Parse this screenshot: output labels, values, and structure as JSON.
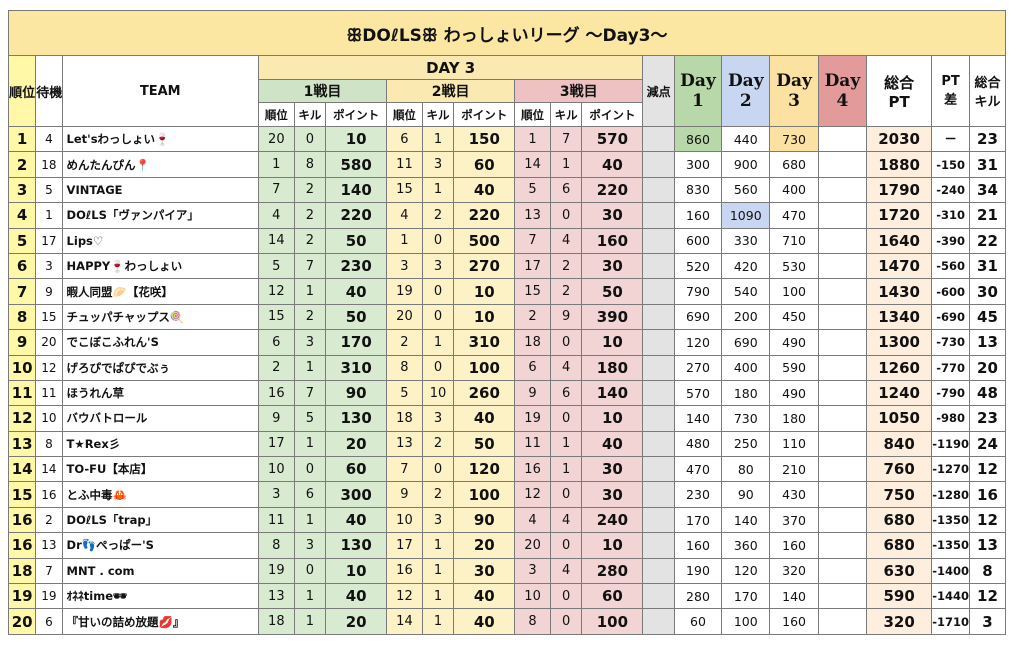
{
  "title": "ꕥDOℓLSꕥ わっしょいリーグ 〜Day3〜",
  "headers": {
    "rank": "順位",
    "wait": "待機",
    "team": "TEAM",
    "day3": "DAY 3",
    "match1": "1戦目",
    "match2": "2戦目",
    "match3": "3戦目",
    "penalty": "減点",
    "sub_rank": "順位",
    "sub_kill": "キル",
    "sub_point": "ポイント",
    "day_label": "Day",
    "day1": "1",
    "day2": "2",
    "day3n": "3",
    "day4": "4",
    "total_a": "総合",
    "total_b": "PT",
    "diff_a": "PT",
    "diff_b": "差",
    "kills_a": "総合",
    "kills_b": "キル"
  },
  "rows": [
    {
      "rank": "1",
      "wait": "4",
      "team": "Let'sわっしょい🍷",
      "m1": [
        "20",
        "0",
        "10"
      ],
      "m2": [
        "6",
        "1",
        "150"
      ],
      "m3": [
        "1",
        "7",
        "570"
      ],
      "pen": "",
      "d1": "860",
      "d2": "440",
      "d3": "730",
      "d4": "",
      "total": "2030",
      "diff": "ー",
      "kills": "23"
    },
    {
      "rank": "2",
      "wait": "18",
      "team": "めんたんぴん📍",
      "m1": [
        "1",
        "8",
        "580"
      ],
      "m2": [
        "11",
        "3",
        "60"
      ],
      "m3": [
        "14",
        "1",
        "40"
      ],
      "pen": "",
      "d1": "300",
      "d2": "900",
      "d3": "680",
      "d4": "",
      "total": "1880",
      "diff": "-150",
      "kills": "31"
    },
    {
      "rank": "3",
      "wait": "5",
      "team": "VINTAGE",
      "m1": [
        "7",
        "2",
        "140"
      ],
      "m2": [
        "15",
        "1",
        "40"
      ],
      "m3": [
        "5",
        "6",
        "220"
      ],
      "pen": "",
      "d1": "830",
      "d2": "560",
      "d3": "400",
      "d4": "",
      "total": "1790",
      "diff": "-240",
      "kills": "34"
    },
    {
      "rank": "4",
      "wait": "1",
      "team": "DOℓLS「ヴァンパイア」",
      "m1": [
        "4",
        "2",
        "220"
      ],
      "m2": [
        "4",
        "2",
        "220"
      ],
      "m3": [
        "13",
        "0",
        "30"
      ],
      "pen": "",
      "d1": "160",
      "d2": "1090",
      "d3": "470",
      "d4": "",
      "total": "1720",
      "diff": "-310",
      "kills": "21"
    },
    {
      "rank": "5",
      "wait": "17",
      "team": "Lips♡",
      "m1": [
        "14",
        "2",
        "50"
      ],
      "m2": [
        "1",
        "0",
        "500"
      ],
      "m3": [
        "7",
        "4",
        "160"
      ],
      "pen": "",
      "d1": "600",
      "d2": "330",
      "d3": "710",
      "d4": "",
      "total": "1640",
      "diff": "-390",
      "kills": "22"
    },
    {
      "rank": "6",
      "wait": "3",
      "team": "HAPPY🍷わっしょい",
      "m1": [
        "5",
        "7",
        "230"
      ],
      "m2": [
        "3",
        "3",
        "270"
      ],
      "m3": [
        "17",
        "2",
        "30"
      ],
      "pen": "",
      "d1": "520",
      "d2": "420",
      "d3": "530",
      "d4": "",
      "total": "1470",
      "diff": "-560",
      "kills": "31"
    },
    {
      "rank": "7",
      "wait": "9",
      "team": "暇人同盟🥟【花咲】",
      "m1": [
        "12",
        "1",
        "40"
      ],
      "m2": [
        "19",
        "0",
        "10"
      ],
      "m3": [
        "15",
        "2",
        "50"
      ],
      "pen": "",
      "d1": "790",
      "d2": "540",
      "d3": "100",
      "d4": "",
      "total": "1430",
      "diff": "-600",
      "kills": "30"
    },
    {
      "rank": "8",
      "wait": "15",
      "team": "チュッパチャップス🍭",
      "m1": [
        "15",
        "2",
        "50"
      ],
      "m2": [
        "20",
        "0",
        "10"
      ],
      "m3": [
        "2",
        "9",
        "390"
      ],
      "pen": "",
      "d1": "690",
      "d2": "200",
      "d3": "450",
      "d4": "",
      "total": "1340",
      "diff": "-690",
      "kills": "45"
    },
    {
      "rank": "9",
      "wait": "20",
      "team": "でこぼこふれん'S",
      "m1": [
        "6",
        "3",
        "170"
      ],
      "m2": [
        "2",
        "1",
        "310"
      ],
      "m3": [
        "18",
        "0",
        "10"
      ],
      "pen": "",
      "d1": "120",
      "d2": "690",
      "d3": "490",
      "d4": "",
      "total": "1300",
      "diff": "-730",
      "kills": "13"
    },
    {
      "rank": "10",
      "wait": "12",
      "team": "げろぴでぱぴでぶぅ",
      "m1": [
        "2",
        "1",
        "310"
      ],
      "m2": [
        "8",
        "0",
        "100"
      ],
      "m3": [
        "6",
        "4",
        "180"
      ],
      "pen": "",
      "d1": "270",
      "d2": "400",
      "d3": "590",
      "d4": "",
      "total": "1260",
      "diff": "-770",
      "kills": "20"
    },
    {
      "rank": "11",
      "wait": "11",
      "team": "ほうれん草",
      "m1": [
        "16",
        "7",
        "90"
      ],
      "m2": [
        "5",
        "10",
        "260"
      ],
      "m3": [
        "9",
        "6",
        "140"
      ],
      "pen": "",
      "d1": "570",
      "d2": "180",
      "d3": "490",
      "d4": "",
      "total": "1240",
      "diff": "-790",
      "kills": "48"
    },
    {
      "rank": "12",
      "wait": "10",
      "team": "バウバトロール",
      "m1": [
        "9",
        "5",
        "130"
      ],
      "m2": [
        "18",
        "3",
        "40"
      ],
      "m3": [
        "19",
        "0",
        "10"
      ],
      "pen": "",
      "d1": "140",
      "d2": "730",
      "d3": "180",
      "d4": "",
      "total": "1050",
      "diff": "-980",
      "kills": "23"
    },
    {
      "rank": "13",
      "wait": "8",
      "team": "T★Rex彡",
      "m1": [
        "17",
        "1",
        "20"
      ],
      "m2": [
        "13",
        "2",
        "50"
      ],
      "m3": [
        "11",
        "1",
        "40"
      ],
      "pen": "",
      "d1": "480",
      "d2": "250",
      "d3": "110",
      "d4": "",
      "total": "840",
      "diff": "-1190",
      "kills": "24"
    },
    {
      "rank": "14",
      "wait": "14",
      "team": "TO-FU【本店】",
      "m1": [
        "10",
        "0",
        "60"
      ],
      "m2": [
        "7",
        "0",
        "120"
      ],
      "m3": [
        "16",
        "1",
        "30"
      ],
      "pen": "",
      "d1": "470",
      "d2": "80",
      "d3": "210",
      "d4": "",
      "total": "760",
      "diff": "-1270",
      "kills": "12"
    },
    {
      "rank": "15",
      "wait": "16",
      "team": "とふ中毒🦀",
      "m1": [
        "3",
        "6",
        "300"
      ],
      "m2": [
        "9",
        "2",
        "100"
      ],
      "m3": [
        "12",
        "0",
        "30"
      ],
      "pen": "",
      "d1": "230",
      "d2": "90",
      "d3": "430",
      "d4": "",
      "total": "750",
      "diff": "-1280",
      "kills": "16"
    },
    {
      "rank": "16",
      "wait": "2",
      "team": "DOℓLS「trap」",
      "m1": [
        "11",
        "1",
        "40"
      ],
      "m2": [
        "10",
        "3",
        "90"
      ],
      "m3": [
        "4",
        "4",
        "240"
      ],
      "pen": "",
      "d1": "170",
      "d2": "140",
      "d3": "370",
      "d4": "",
      "total": "680",
      "diff": "-1350",
      "kills": "12"
    },
    {
      "rank": "16",
      "wait": "13",
      "team": "Dr👣ぺっぱー'S",
      "m1": [
        "8",
        "3",
        "130"
      ],
      "m2": [
        "17",
        "1",
        "20"
      ],
      "m3": [
        "20",
        "0",
        "10"
      ],
      "pen": "",
      "d1": "160",
      "d2": "360",
      "d3": "160",
      "d4": "",
      "total": "680",
      "diff": "-1350",
      "kills": "13"
    },
    {
      "rank": "18",
      "wait": "7",
      "team": "MNT . com",
      "m1": [
        "19",
        "0",
        "10"
      ],
      "m2": [
        "16",
        "1",
        "30"
      ],
      "m3": [
        "3",
        "4",
        "280"
      ],
      "pen": "",
      "d1": "190",
      "d2": "120",
      "d3": "320",
      "d4": "",
      "total": "630",
      "diff": "-1400",
      "kills": "8"
    },
    {
      "rank": "19",
      "wait": "19",
      "team": "ｵﾈﾈtime🕶",
      "m1": [
        "13",
        "1",
        "40"
      ],
      "m2": [
        "12",
        "1",
        "40"
      ],
      "m3": [
        "10",
        "0",
        "60"
      ],
      "pen": "",
      "d1": "280",
      "d2": "170",
      "d3": "140",
      "d4": "",
      "total": "590",
      "diff": "-1440",
      "kills": "12"
    },
    {
      "rank": "20",
      "wait": "6",
      "team": "『甘いの詰め放題💋』",
      "m1": [
        "18",
        "1",
        "20"
      ],
      "m2": [
        "14",
        "1",
        "40"
      ],
      "m3": [
        "8",
        "0",
        "100"
      ],
      "pen": "",
      "d1": "60",
      "d2": "100",
      "d3": "160",
      "d4": "",
      "total": "320",
      "diff": "-1710",
      "kills": "3"
    }
  ],
  "colors": {
    "title_bg": "#fbe7a1",
    "rank_bg": "#fff8a6",
    "m1_bg": "#d8ead0",
    "m2_bg": "#fdf1c6",
    "m3_bg": "#f3d4d4",
    "day1_bg": "#b8d8aa",
    "day2_bg": "#c9d6f2",
    "day3_bg": "#fbe1a2",
    "day4_bg": "#e39a9a"
  }
}
